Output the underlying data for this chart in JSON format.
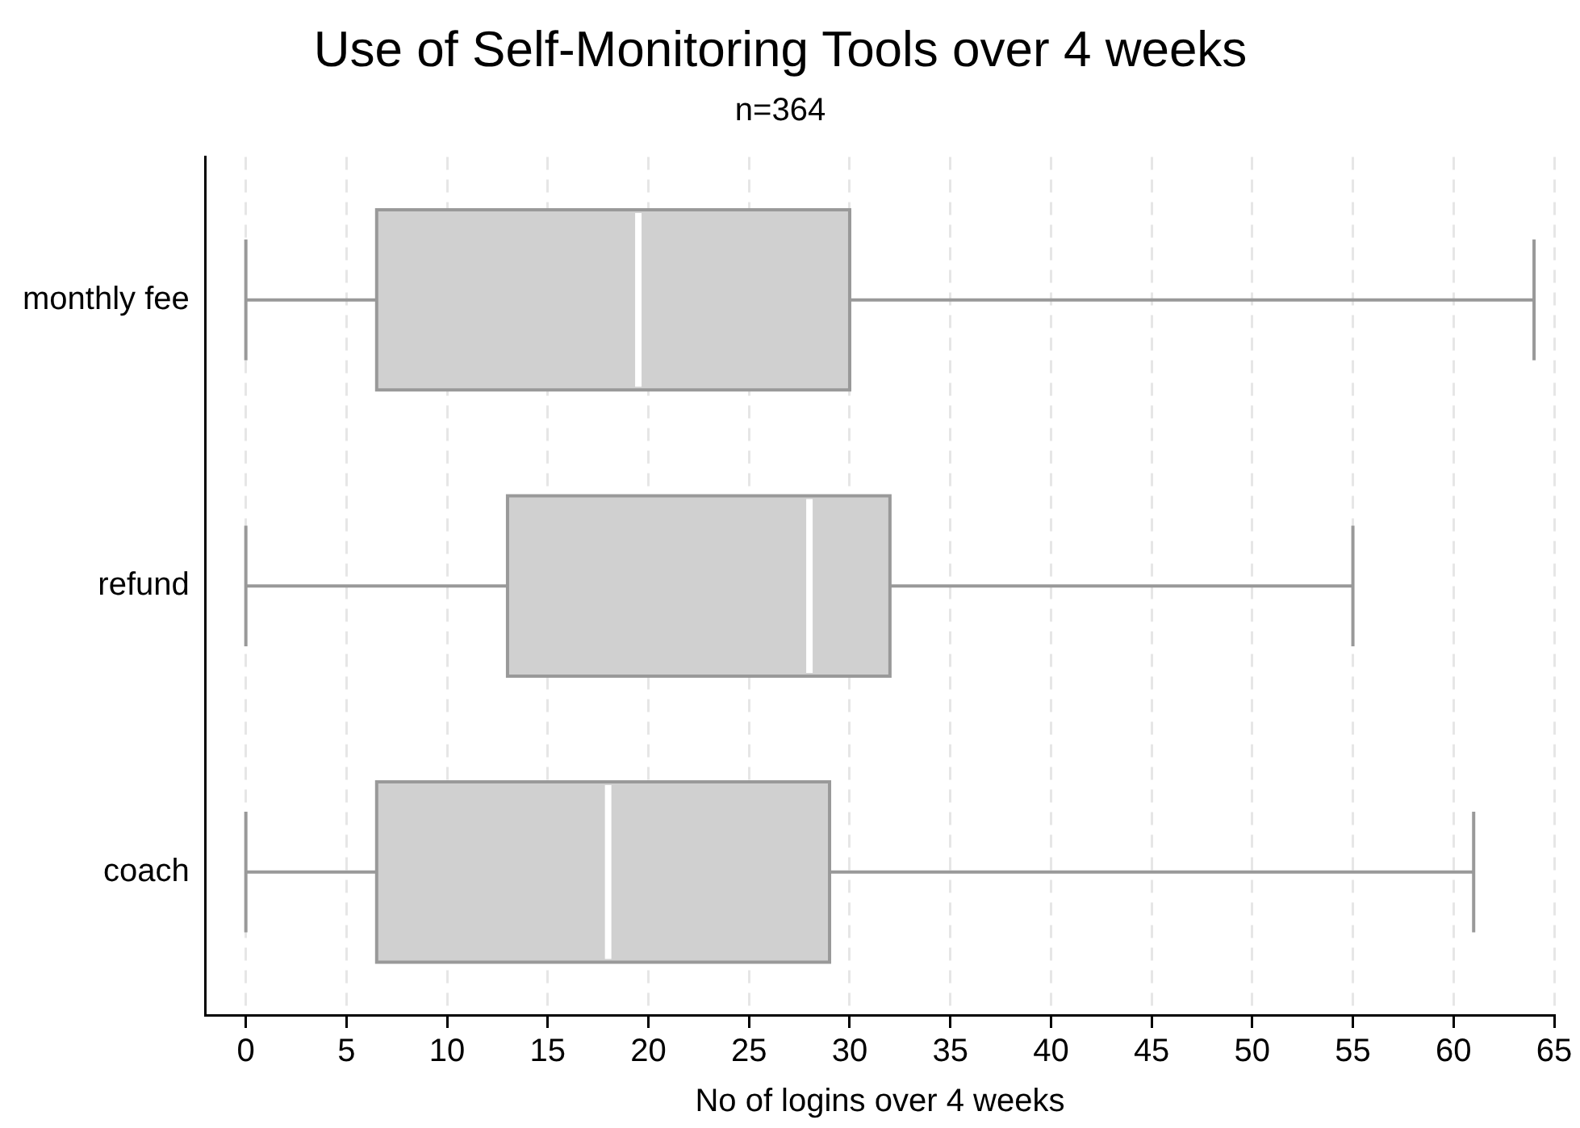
{
  "chart_data": {
    "type": "box",
    "title": "Use of Self-Monitoring Tools over 4 weeks",
    "subtitle": "n=364",
    "xlabel": "No of logins over 4 weeks",
    "orientation": "horizontal",
    "categories": [
      "monthly fee",
      "refund",
      "coach"
    ],
    "boxes": [
      {
        "low": 0,
        "q1": 6.5,
        "median": 19.5,
        "q3": 30,
        "high": 64
      },
      {
        "low": 0,
        "q1": 13,
        "median": 28,
        "q3": 32,
        "high": 55
      },
      {
        "low": 0,
        "q1": 6.5,
        "median": 18,
        "q3": 29,
        "high": 61
      }
    ],
    "color": "#d0d0d0",
    "xlim": [
      -2,
      65
    ],
    "xticks": [
      0,
      5,
      10,
      15,
      20,
      25,
      30,
      35,
      40,
      45,
      50,
      55,
      60,
      65
    ],
    "grid": "x"
  }
}
